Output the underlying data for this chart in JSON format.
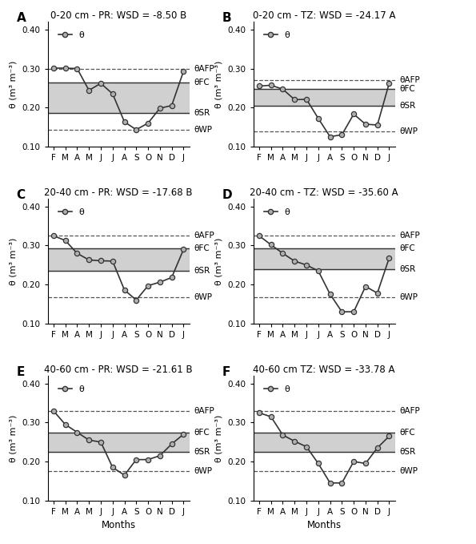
{
  "months": [
    "F",
    "M",
    "A",
    "M",
    "J",
    "J",
    "A",
    "S",
    "O",
    "N",
    "D",
    "J"
  ],
  "panels": [
    {
      "label": "A",
      "title": "0-20 cm - PR: WSD = -8.50 B",
      "theta": [
        0.301,
        0.301,
        0.3,
        0.244,
        0.262,
        0.235,
        0.163,
        0.143,
        0.16,
        0.198,
        0.205,
        0.293
      ],
      "theta_AFP": 0.3,
      "theta_FC": 0.265,
      "theta_SR": 0.185,
      "theta_WP": 0.143,
      "ylim": [
        0.1,
        0.42
      ],
      "yticks": [
        0.1,
        0.2,
        0.3,
        0.4
      ]
    },
    {
      "label": "B",
      "title": "0-20 cm - TZ: WSD = -24.17 A",
      "theta": [
        0.255,
        0.257,
        0.247,
        0.22,
        0.221,
        0.172,
        0.125,
        0.13,
        0.183,
        0.157,
        0.155,
        0.262
      ],
      "theta_AFP": 0.27,
      "theta_FC": 0.248,
      "theta_SR": 0.205,
      "theta_WP": 0.138,
      "ylim": [
        0.1,
        0.42
      ],
      "yticks": [
        0.1,
        0.2,
        0.3,
        0.4
      ]
    },
    {
      "label": "C",
      "title": "20-40 cm - PR: WSD = -17.68 B",
      "theta": [
        0.325,
        0.313,
        0.28,
        0.263,
        0.261,
        0.26,
        0.186,
        0.16,
        0.197,
        0.206,
        0.218,
        0.29
      ],
      "theta_AFP": 0.325,
      "theta_FC": 0.292,
      "theta_SR": 0.235,
      "theta_WP": 0.168,
      "ylim": [
        0.1,
        0.42
      ],
      "yticks": [
        0.1,
        0.2,
        0.3,
        0.4
      ]
    },
    {
      "label": "D",
      "title": "20-40 cm - TZ: WSD = -35.60 A",
      "theta": [
        0.325,
        0.302,
        0.28,
        0.26,
        0.25,
        0.235,
        0.175,
        0.13,
        0.13,
        0.195,
        0.178,
        0.268
      ],
      "theta_AFP": 0.325,
      "theta_FC": 0.292,
      "theta_SR": 0.24,
      "theta_WP": 0.168,
      "ylim": [
        0.1,
        0.42
      ],
      "yticks": [
        0.1,
        0.2,
        0.3,
        0.4
      ]
    },
    {
      "label": "E",
      "title": "40-60 cm - PR: WSD = -21.61 B",
      "theta": [
        0.33,
        0.295,
        0.275,
        0.255,
        0.25,
        0.185,
        0.165,
        0.205,
        0.205,
        0.215,
        0.245,
        0.27
      ],
      "theta_AFP": 0.33,
      "theta_FC": 0.275,
      "theta_SR": 0.225,
      "theta_WP": 0.175,
      "ylim": [
        0.1,
        0.42
      ],
      "yticks": [
        0.1,
        0.2,
        0.3,
        0.4
      ]
    },
    {
      "label": "F",
      "title": "40-60 cm TZ: WSD = -33.78 A",
      "theta": [
        0.325,
        0.315,
        0.268,
        0.252,
        0.238,
        0.195,
        0.145,
        0.145,
        0.2,
        0.195,
        0.235,
        0.265
      ],
      "theta_AFP": 0.33,
      "theta_FC": 0.275,
      "theta_SR": 0.225,
      "theta_WP": 0.175,
      "ylim": [
        0.1,
        0.42
      ],
      "yticks": [
        0.1,
        0.2,
        0.3,
        0.4
      ]
    }
  ],
  "line_color": "#333333",
  "marker_face": "#b0b0b0",
  "shading_color": "#c8c8c8",
  "shading_alpha": 0.85,
  "dashed_color": "#555555",
  "solid_color": "#333333"
}
